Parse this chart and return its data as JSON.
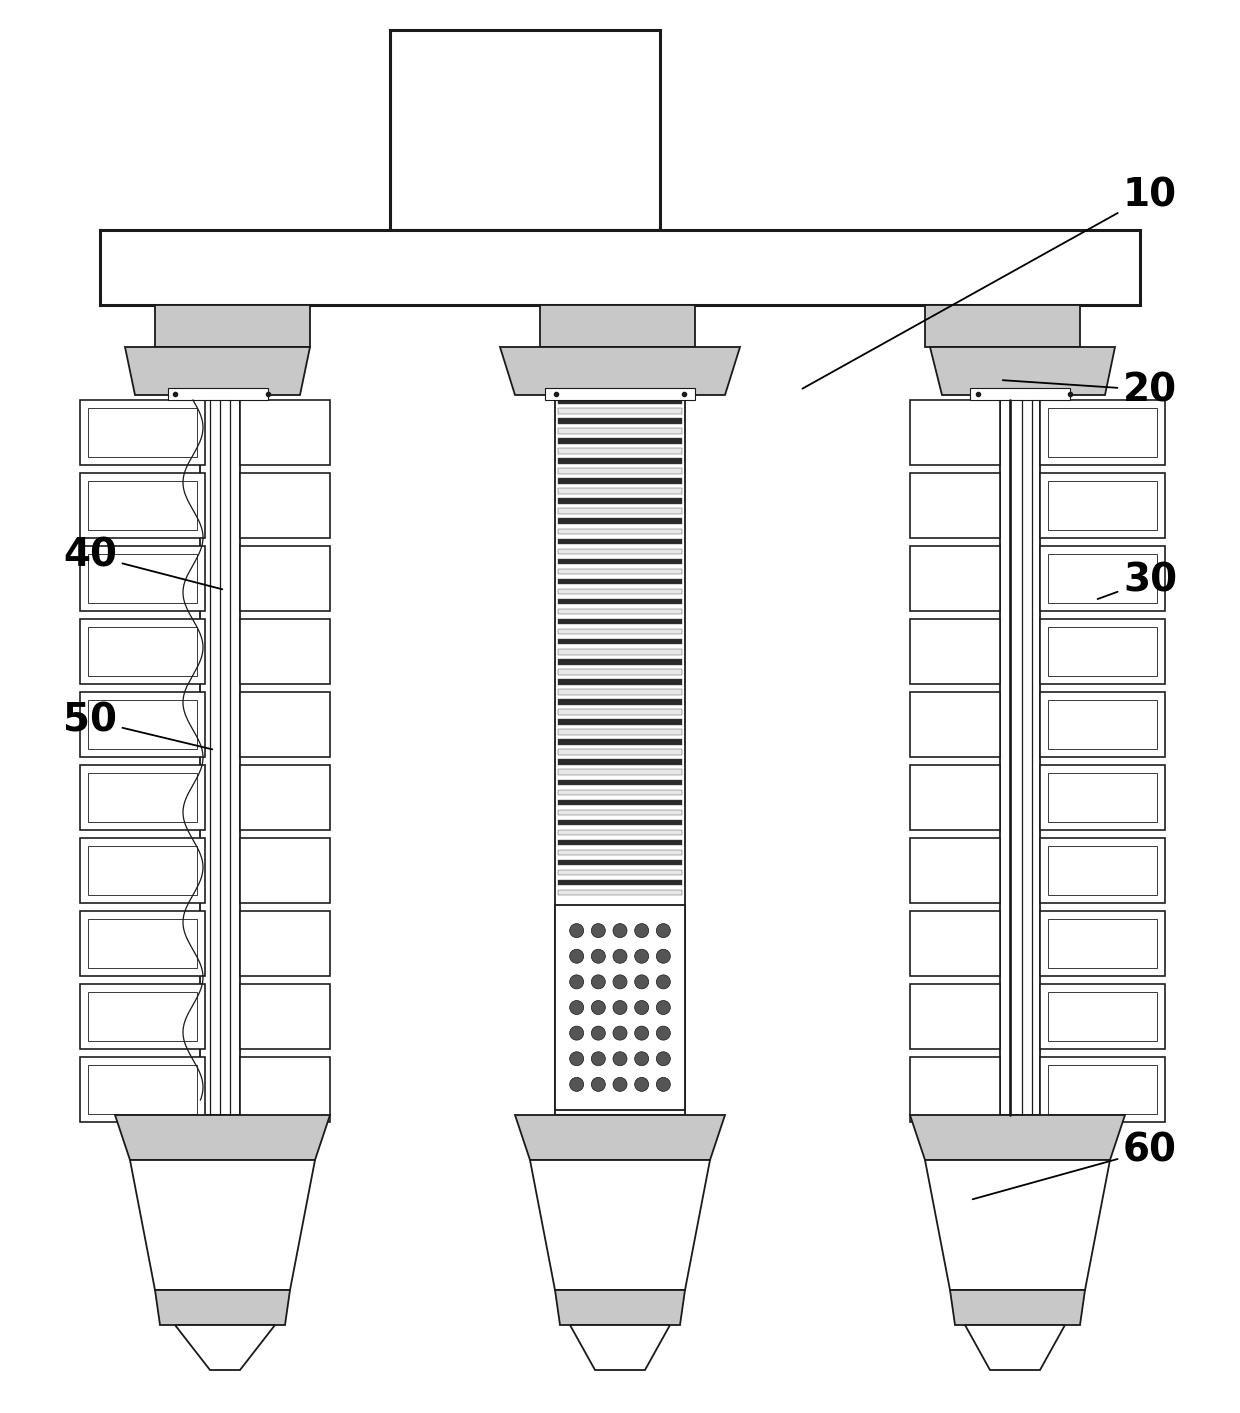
{
  "fig_width": 12.4,
  "fig_height": 14.13,
  "dpi": 100,
  "bg_color": "#ffffff",
  "lc": "#1a1a1a",
  "lw": 1.3,
  "tlw": 2.2,
  "label_fontsize": 28,
  "annotation_lw": 1.3,
  "gray_light": "#c8c8c8",
  "gray_mid": "#a0a0a0",
  "gray_dark": "#505050",
  "white": "#ffffff",
  "stripe_dark": "#2a2a2a",
  "stripe_light": "#f0f0f0"
}
